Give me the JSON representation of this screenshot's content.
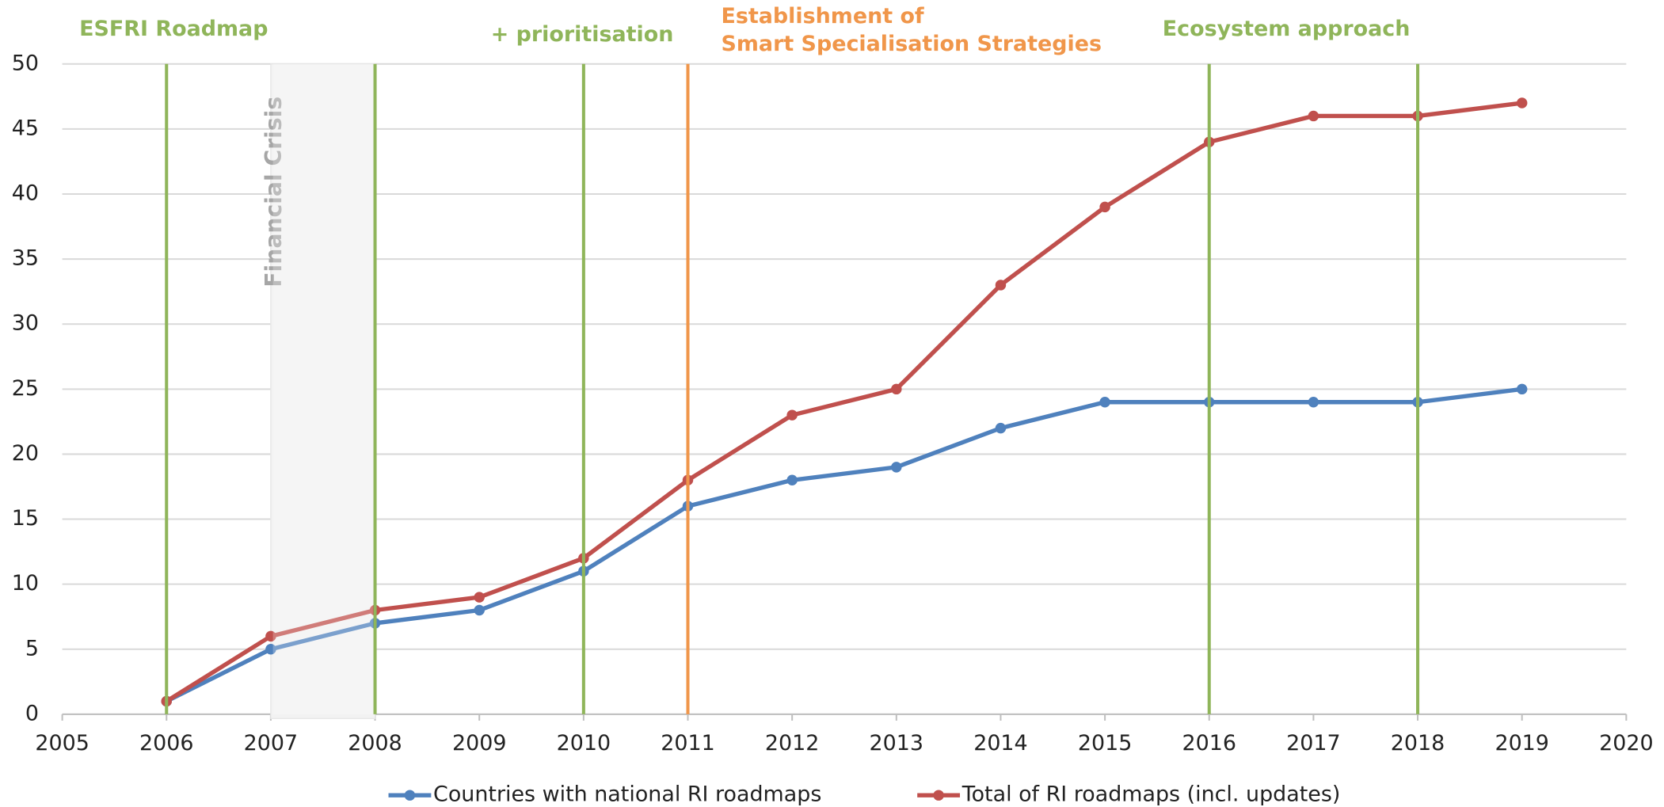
{
  "chart_data": {
    "type": "line",
    "x": [
      2006,
      2007,
      2008,
      2009,
      2010,
      2011,
      2012,
      2013,
      2014,
      2015,
      2016,
      2017,
      2018,
      2019
    ],
    "series": [
      {
        "name": "Countries with national RI roadmaps",
        "color": "#4f81bd",
        "values": [
          1,
          5,
          7,
          8,
          11,
          16,
          18,
          19,
          22,
          24,
          24,
          24,
          24,
          25
        ]
      },
      {
        "name": "Total of RI roadmaps (incl. updates)",
        "color": "#c0504d",
        "values": [
          1,
          6,
          8,
          9,
          12,
          18,
          23,
          25,
          33,
          39,
          44,
          46,
          46,
          47
        ]
      }
    ],
    "xlim": [
      2005,
      2020
    ],
    "xticks": [
      2005,
      2006,
      2007,
      2008,
      2009,
      2010,
      2011,
      2012,
      2013,
      2014,
      2015,
      2016,
      2017,
      2018,
      2019,
      2020
    ],
    "ylim": [
      0,
      50
    ],
    "yticks": [
      0,
      5,
      10,
      15,
      20,
      25,
      30,
      35,
      40,
      45,
      50
    ],
    "grid": true,
    "legend": "bottom",
    "vlines": [
      {
        "x": 2006,
        "color": "#8fb55a"
      },
      {
        "x": 2008,
        "color": "#8fb55a"
      },
      {
        "x": 2010,
        "color": "#8fb55a"
      },
      {
        "x": 2011,
        "color": "#f0964a"
      },
      {
        "x": 2016,
        "color": "#8fb55a"
      },
      {
        "x": 2018,
        "color": "#8fb55a"
      }
    ],
    "shaded": {
      "range": [
        2007,
        2008
      ],
      "label": "Financial Crisis"
    },
    "annotations": [
      {
        "lines": [
          "ESFRI Roadmap"
        ],
        "color": "#8fb55a"
      },
      {
        "lines": [
          "+ prioritisation"
        ],
        "color": "#8fb55a"
      },
      {
        "lines": [
          "Establishment of",
          "Smart Specialisation Strategies"
        ],
        "color": "#f0964a"
      },
      {
        "lines": [
          "Ecosystem approach"
        ],
        "color": "#8fb55a"
      }
    ]
  }
}
